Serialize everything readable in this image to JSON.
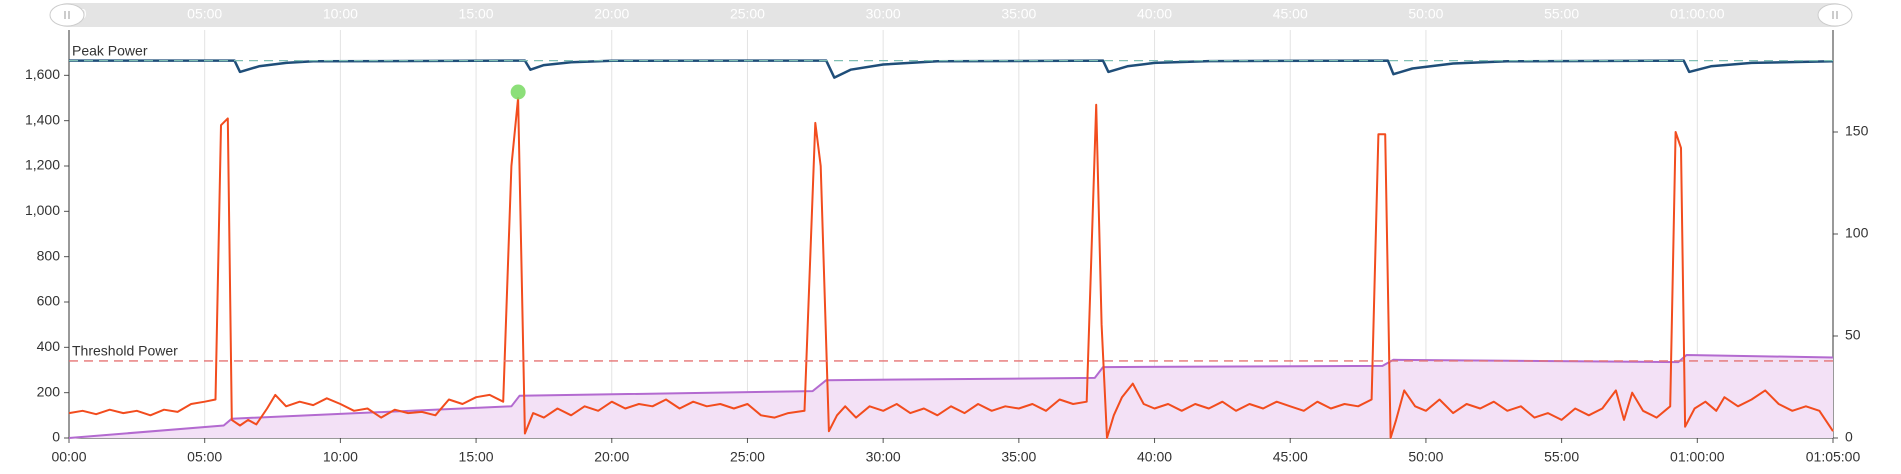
{
  "chart_data": {
    "type": "line",
    "xlim": [
      0,
      65
    ],
    "xticks": [
      {
        "value": 0,
        "label": "00:00"
      },
      {
        "value": 5,
        "label": "05:00"
      },
      {
        "value": 10,
        "label": "10:00"
      },
      {
        "value": 15,
        "label": "15:00"
      },
      {
        "value": 20,
        "label": "20:00"
      },
      {
        "value": 25,
        "label": "25:00"
      },
      {
        "value": 30,
        "label": "30:00"
      },
      {
        "value": 35,
        "label": "35:00"
      },
      {
        "value": 40,
        "label": "40:00"
      },
      {
        "value": 45,
        "label": "45:00"
      },
      {
        "value": 50,
        "label": "50:00"
      },
      {
        "value": 55,
        "label": "55:00"
      },
      {
        "value": 60,
        "label": "01:00:00"
      },
      {
        "value": 65,
        "label": "01:05:00"
      }
    ],
    "ylim": [
      0,
      1800
    ],
    "yticks": [
      0,
      200,
      400,
      600,
      800,
      {
        "value": 1000,
        "label": "1,000"
      },
      {
        "value": 1200,
        "label": "1,200"
      },
      {
        "value": 1400,
        "label": "1,400"
      },
      {
        "value": 1600,
        "label": "1,600"
      }
    ],
    "y2lim": [
      0,
      200
    ],
    "y2ticks": [
      0,
      50,
      100,
      150
    ],
    "grid": "x",
    "reference_lines": [
      {
        "label": "Peak Power",
        "value": 1665,
        "color": "#7fbfb3"
      },
      {
        "label": "Threshold Power",
        "value": 340,
        "color": "#e57373"
      }
    ],
    "series": [
      {
        "color": "#b36ad0",
        "fill": "#f3e1f6",
        "x": [
          0,
          5.7,
          6.0,
          16.3,
          16.6,
          27.4,
          27.9,
          37.8,
          38.1,
          48.4,
          48.8,
          59.3,
          59.6,
          65
        ],
        "values": [
          0,
          55,
          85,
          140,
          186,
          207,
          255,
          265,
          313,
          318,
          345,
          335,
          366,
          355
        ]
      },
      {
        "color": "#1f4e79",
        "x": [
          0,
          6.1,
          6.3,
          7,
          8,
          9,
          16.8,
          17,
          17.5,
          18.5,
          20,
          27.9,
          28.2,
          28.8,
          30,
          32,
          38.1,
          38.3,
          39,
          40,
          42,
          48.6,
          48.8,
          49.5,
          51,
          53,
          59.5,
          59.7,
          60.5,
          62,
          65
        ],
        "values": [
          1665,
          1665,
          1615,
          1640,
          1655,
          1662,
          1665,
          1625,
          1645,
          1658,
          1664,
          1665,
          1590,
          1625,
          1648,
          1662,
          1665,
          1615,
          1640,
          1655,
          1663,
          1665,
          1605,
          1630,
          1652,
          1662,
          1665,
          1615,
          1640,
          1655,
          1662
        ]
      },
      {
        "color": "#f24c1e",
        "x": [
          0,
          0.5,
          1,
          1.5,
          2,
          2.5,
          3,
          3.5,
          4,
          4.5,
          5,
          5.4,
          5.6,
          5.85,
          6.0,
          6.3,
          6.6,
          6.9,
          7.3,
          7.6,
          8,
          8.5,
          9,
          9.5,
          10,
          10.5,
          11,
          11.5,
          12,
          12.5,
          13,
          13.5,
          14,
          14.5,
          15,
          15.5,
          16,
          16.3,
          16.55,
          16.8,
          17.1,
          17.5,
          18,
          18.5,
          19,
          19.5,
          20,
          20.5,
          21,
          21.5,
          22,
          22.5,
          23,
          23.5,
          24,
          24.5,
          25,
          25.5,
          26,
          26.5,
          27.1,
          27.5,
          27.7,
          28.0,
          28.3,
          28.6,
          29,
          29.5,
          30,
          30.5,
          31,
          31.5,
          32,
          32.5,
          33,
          33.5,
          34,
          34.5,
          35,
          35.5,
          36,
          36.5,
          37,
          37.5,
          37.85,
          38.05,
          38.25,
          38.5,
          38.8,
          39.2,
          39.6,
          40,
          40.5,
          41,
          41.5,
          42,
          42.5,
          43,
          43.5,
          44,
          44.5,
          45,
          45.5,
          46,
          46.5,
          47,
          47.5,
          48,
          48.25,
          48.5,
          48.7,
          48.9,
          49.2,
          49.6,
          50,
          50.5,
          51,
          51.5,
          52,
          52.5,
          53,
          53.5,
          54,
          54.5,
          55,
          55.5,
          56,
          56.5,
          57,
          57.3,
          57.6,
          58,
          58.5,
          59,
          59.2,
          59.4,
          59.55,
          59.9,
          60.3,
          60.7,
          61,
          61.5,
          62,
          62.5,
          63,
          63.5,
          64,
          64.5,
          65
        ],
        "values": [
          110,
          120,
          105,
          125,
          110,
          120,
          100,
          125,
          115,
          150,
          160,
          170,
          1380,
          1410,
          80,
          55,
          80,
          60,
          130,
          190,
          140,
          160,
          145,
          175,
          150,
          120,
          130,
          90,
          125,
          110,
          115,
          100,
          170,
          150,
          180,
          190,
          160,
          1200,
          1500,
          20,
          110,
          90,
          130,
          100,
          140,
          120,
          160,
          130,
          150,
          140,
          170,
          130,
          160,
          140,
          150,
          130,
          150,
          100,
          90,
          110,
          120,
          1390,
          1200,
          30,
          100,
          140,
          90,
          140,
          120,
          150,
          110,
          130,
          100,
          140,
          110,
          150,
          120,
          140,
          130,
          150,
          120,
          170,
          150,
          160,
          1470,
          500,
          0,
          100,
          180,
          240,
          150,
          130,
          150,
          120,
          150,
          130,
          160,
          120,
          150,
          130,
          160,
          140,
          120,
          160,
          130,
          150,
          140,
          170,
          1340,
          1340,
          0,
          80,
          210,
          140,
          120,
          170,
          110,
          150,
          130,
          160,
          120,
          140,
          90,
          110,
          80,
          130,
          100,
          130,
          210,
          80,
          200,
          120,
          90,
          140,
          1350,
          1280,
          50,
          130,
          160,
          120,
          180,
          140,
          170,
          210,
          150,
          120,
          140,
          120,
          30
        ]
      }
    ],
    "highlight": {
      "x": 16.55,
      "y": 1500,
      "color": "#7fdc6a"
    }
  }
}
